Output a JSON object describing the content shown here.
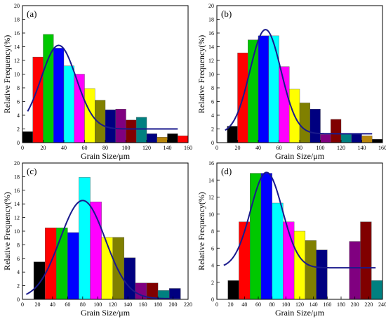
{
  "palette": [
    "#000000",
    "#ff0000",
    "#00c800",
    "#0000ff",
    "#00ffff",
    "#ff00ff",
    "#ffff00",
    "#808000",
    "#000080",
    "#800080",
    "#800000",
    "#008080",
    "#00007f",
    "#b8860b"
  ],
  "fit_color": "#1a1a8c",
  "chart_data": [
    {
      "type": "bar",
      "panel_label": "(a)",
      "xlabel": "Grain Size/μm",
      "ylabel": "Relative Frequency(%)",
      "bin_width": 10,
      "x": [
        5,
        15,
        25,
        35,
        45,
        55,
        65,
        75,
        85,
        95,
        105,
        115,
        125,
        135,
        145,
        155
      ],
      "values": [
        1.6,
        12.5,
        15.8,
        13.8,
        11.2,
        10.0,
        7.9,
        6.2,
        4.8,
        4.9,
        3.3,
        3.7,
        1.3,
        0.8,
        1.3,
        1.0
      ],
      "xlim": [
        0,
        160
      ],
      "ylim": [
        0,
        20
      ],
      "xticks": [
        0,
        20,
        40,
        60,
        80,
        100,
        120,
        140,
        160
      ],
      "yticks": [
        0,
        2,
        4,
        6,
        8,
        10,
        12,
        14,
        16,
        18,
        20
      ],
      "fit": {
        "x0": 35,
        "amplitude": 12.2,
        "sigma": 17,
        "offset": 2.0,
        "x_start": 5,
        "x_end": 150
      }
    },
    {
      "type": "bar",
      "panel_label": "(b)",
      "xlabel": "Grain Size/μm",
      "ylabel": "Relative Frequency(%)",
      "bin_width": 10,
      "x": [
        15,
        25,
        35,
        45,
        55,
        65,
        75,
        85,
        95,
        105,
        115,
        125,
        135,
        145,
        155
      ],
      "values": [
        2.4,
        13.1,
        15.0,
        15.6,
        15.6,
        11.1,
        7.8,
        5.8,
        4.9,
        1.2,
        3.4,
        1.3,
        1.3,
        1.0,
        0.5
      ],
      "xlim": [
        0,
        160
      ],
      "ylim": [
        0,
        20
      ],
      "xticks": [
        0,
        20,
        40,
        60,
        80,
        100,
        120,
        140,
        160
      ],
      "yticks": [
        0,
        2,
        4,
        6,
        8,
        10,
        12,
        14,
        16,
        18,
        20
      ],
      "fit": {
        "x0": 47,
        "amplitude": 15.2,
        "sigma": 15,
        "offset": 1.3,
        "x_start": 8,
        "x_end": 150
      }
    },
    {
      "type": "bar",
      "panel_label": "(c)",
      "xlabel": "Grain Size/μm",
      "ylabel": "Relative Frequency(%)",
      "bin_width": 15,
      "x": [
        22.5,
        37.5,
        52.5,
        67.5,
        82.5,
        97.5,
        112.5,
        127.5,
        142.5,
        157.5,
        172.5,
        187.5,
        202.5
      ],
      "values": [
        5.5,
        10.5,
        10.5,
        9.8,
        17.9,
        14.3,
        9.1,
        9.1,
        6.1,
        2.4,
        2.4,
        1.3,
        1.6
      ],
      "xlim": [
        0,
        220
      ],
      "ylim": [
        0,
        20
      ],
      "xticks": [
        0,
        20,
        40,
        60,
        80,
        100,
        120,
        140,
        160,
        180,
        200,
        220
      ],
      "yticks": [
        0,
        2,
        4,
        6,
        8,
        10,
        12,
        14,
        16,
        18,
        20
      ],
      "fit": {
        "x0": 80,
        "amplitude": 14.4,
        "sigma": 30,
        "offset": 0.1,
        "x_start": 5,
        "x_end": 210
      }
    },
    {
      "type": "bar",
      "panel_label": "(d)",
      "xlabel": "Grain Size/μm",
      "ylabel": "Relative Frequency(%)",
      "bin_width": 16,
      "x": [
        24,
        40,
        56,
        72,
        88,
        104,
        120,
        136,
        152,
        200,
        216,
        232
      ],
      "values": [
        2.2,
        9.1,
        14.8,
        14.8,
        11.3,
        9.1,
        8.0,
        6.9,
        5.8,
        6.8,
        9.1,
        2.2
      ],
      "xlim": [
        0,
        240
      ],
      "ylim": [
        0,
        16
      ],
      "xticks": [
        0,
        20,
        40,
        60,
        80,
        100,
        120,
        140,
        160,
        180,
        200,
        220,
        240
      ],
      "yticks": [
        0,
        2,
        4,
        6,
        8,
        10,
        12,
        14,
        16
      ],
      "fit": {
        "x0": 72,
        "amplitude": 11.2,
        "sigma": 23,
        "offset": 3.7,
        "x_start": 10,
        "x_end": 230
      }
    }
  ]
}
